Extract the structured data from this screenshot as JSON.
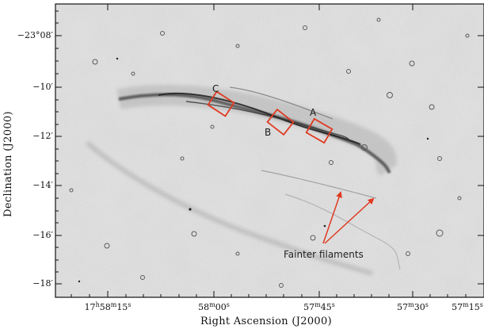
{
  "figure": {
    "xlabel": "Right Ascension (J2000)",
    "ylabel": "Declination (J2000)",
    "colormap": "inverted greyscale",
    "frame_color": "#111111",
    "box_color": "#e03a22",
    "arrow_color": "#e03a22"
  },
  "y_ticks": [
    {
      "text": "−23°08′"
    },
    {
      "text": "−10′"
    },
    {
      "text": "−12′"
    },
    {
      "text": "−14′"
    },
    {
      "text": "−16′"
    },
    {
      "text": "−18′"
    }
  ],
  "x_ticks": [
    {
      "h": "17",
      "m": "58",
      "s": "15"
    },
    {
      "h": "",
      "m": "58",
      "s": "00"
    },
    {
      "h": "",
      "m": "57",
      "s": "45"
    },
    {
      "h": "",
      "m": "57",
      "s": "30"
    },
    {
      "h": "",
      "m": "57",
      "s": "15"
    }
  ],
  "regions": [
    {
      "label": "A"
    },
    {
      "label": "B"
    },
    {
      "label": "C"
    }
  ],
  "annotation": {
    "text": "Fainter filaments"
  }
}
